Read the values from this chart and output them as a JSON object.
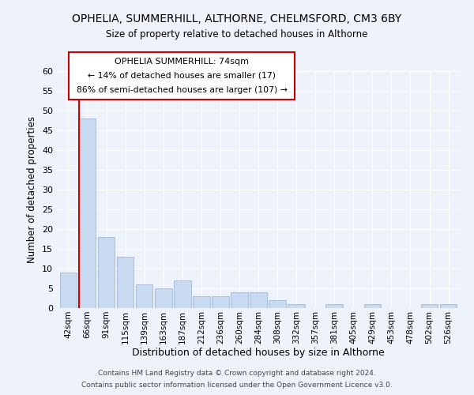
{
  "title": "OPHELIA, SUMMERHILL, ALTHORNE, CHELMSFORD, CM3 6BY",
  "subtitle": "Size of property relative to detached houses in Althorne",
  "xlabel": "Distribution of detached houses by size in Althorne",
  "ylabel": "Number of detached properties",
  "bin_labels": [
    "42sqm",
    "66sqm",
    "91sqm",
    "115sqm",
    "139sqm",
    "163sqm",
    "187sqm",
    "212sqm",
    "236sqm",
    "260sqm",
    "284sqm",
    "308sqm",
    "332sqm",
    "357sqm",
    "381sqm",
    "405sqm",
    "429sqm",
    "453sqm",
    "478sqm",
    "502sqm",
    "526sqm"
  ],
  "bar_heights": [
    9,
    48,
    18,
    13,
    6,
    5,
    7,
    3,
    3,
    4,
    4,
    2,
    1,
    0,
    1,
    0,
    1,
    0,
    0,
    1,
    1
  ],
  "bar_color": "#c9d9f0",
  "bar_edge_color": "#a0b8d8",
  "vline_x_index": 1,
  "vline_color": "#cc0000",
  "annotation_title": "OPHELIA SUMMERHILL: 74sqm",
  "annotation_line1": "← 14% of detached houses are smaller (17)",
  "annotation_line2": "86% of semi-detached houses are larger (107) →",
  "annotation_box_color": "#ffffff",
  "annotation_box_edge_color": "#cc0000",
  "ylim": [
    0,
    60
  ],
  "yticks": [
    0,
    5,
    10,
    15,
    20,
    25,
    30,
    35,
    40,
    45,
    50,
    55,
    60
  ],
  "footer1": "Contains HM Land Registry data © Crown copyright and database right 2024.",
  "footer2": "Contains public sector information licensed under the Open Government Licence v3.0.",
  "background_color": "#eef2fa",
  "grid_color": "#ffffff"
}
